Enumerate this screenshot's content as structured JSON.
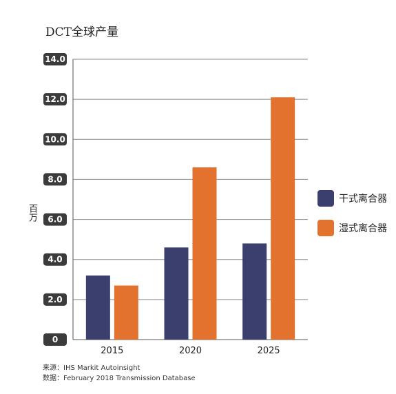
{
  "chart_data": {
    "type": "bar",
    "title": "DCT全球产量",
    "ylabel": "百万",
    "categories": [
      "2015",
      "2020",
      "2025"
    ],
    "series": [
      {
        "name": "干式离合器",
        "values": [
          3.2,
          4.6,
          4.8
        ],
        "color": "#3a3f6e"
      },
      {
        "name": "湿式离合器",
        "values": [
          2.7,
          8.6,
          12.1
        ],
        "color": "#e2722e"
      }
    ],
    "ylim": [
      0,
      14
    ],
    "yticks": [
      "0",
      "2.0",
      "4.0",
      "6.0",
      "8.0",
      "10.0",
      "12.0",
      "14.0"
    ],
    "grid": true,
    "legend_position": "right"
  },
  "footer": {
    "source": "来源：IHS Markit Autoinsight",
    "data": "数据：February 2018 Transmission Database"
  }
}
